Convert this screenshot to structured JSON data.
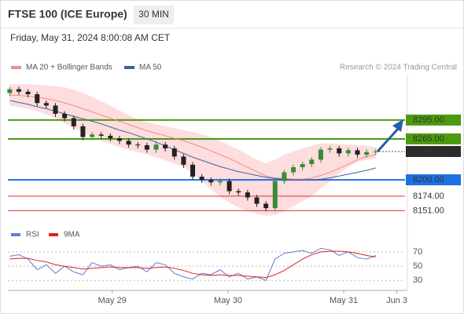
{
  "header": {
    "title": "FTSE 100 (ICE Europe)",
    "interval": "30 MIN",
    "datetime": "Friday, May 31, 2024 8:00:08 AM CET",
    "credit": "Research © 2024 Trading Central"
  },
  "chart_data": [
    {
      "type": "candlestick",
      "x": [
        0,
        1,
        2,
        3,
        4,
        5,
        6,
        7,
        8,
        9,
        10,
        11,
        12,
        13,
        14,
        15,
        16,
        17,
        18,
        19,
        20,
        21,
        22,
        23,
        24,
        25,
        26,
        27,
        28,
        29,
        30,
        31,
        32,
        33,
        34,
        35,
        36,
        37,
        38,
        39,
        40
      ],
      "open": [
        8338,
        8344,
        8340,
        8336,
        8322,
        8318,
        8305,
        8298,
        8285,
        8268,
        8272,
        8270,
        8266,
        8262,
        8256,
        8255,
        8248,
        8256,
        8250,
        8237,
        8224,
        8205,
        8200,
        8196,
        8198,
        8182,
        8180,
        8172,
        8162,
        8155,
        8198,
        8212,
        8220,
        8225,
        8232,
        8248,
        8250,
        8242,
        8247,
        8240,
        8244
      ],
      "high": [
        8348,
        8348,
        8344,
        8340,
        8326,
        8322,
        8309,
        8302,
        8289,
        8276,
        8276,
        8274,
        8270,
        8266,
        8260,
        8259,
        8260,
        8260,
        8254,
        8241,
        8228,
        8209,
        8204,
        8202,
        8202,
        8186,
        8184,
        8176,
        8166,
        8202,
        8216,
        8224,
        8229,
        8236,
        8252,
        8254,
        8254,
        8251,
        8251,
        8248,
        8249
      ],
      "low": [
        8333,
        8335,
        8331,
        8317,
        8313,
        8300,
        8293,
        8280,
        8263,
        8263,
        8265,
        8261,
        8257,
        8251,
        8250,
        8243,
        8243,
        8245,
        8232,
        8219,
        8200,
        8195,
        8191,
        8191,
        8177,
        8175,
        8167,
        8157,
        8150,
        8150,
        8193,
        8207,
        8215,
        8220,
        8227,
        8243,
        8237,
        8237,
        8235,
        8235,
        8239
      ],
      "close": [
        8344,
        8340,
        8336,
        8322,
        8318,
        8305,
        8298,
        8285,
        8268,
        8272,
        8270,
        8266,
        8262,
        8256,
        8255,
        8248,
        8256,
        8250,
        8237,
        8224,
        8205,
        8200,
        8196,
        8198,
        8182,
        8180,
        8172,
        8162,
        8155,
        8198,
        8212,
        8220,
        8225,
        8232,
        8248,
        8250,
        8242,
        8247,
        8240,
        8244,
        8245
      ],
      "up_color": "#3a8a3a",
      "down_color": "#222222",
      "series": [
        {
          "name": "MA 20 + Bollinger Bands",
          "color": "#f28b8b",
          "band_color": "#fcd4d4",
          "values": [
            8335,
            8334,
            8333,
            8331,
            8329,
            8326,
            8322,
            8318,
            8313,
            8308,
            8303,
            8298,
            8293,
            8288,
            8283,
            8278,
            8274,
            8270,
            8266,
            8262,
            8257,
            8252,
            8246,
            8240,
            8234,
            8227,
            8220,
            8213,
            8206,
            8203,
            8202,
            8201,
            8201,
            8203,
            8207,
            8212,
            8218,
            8225,
            8232,
            8237,
            8240
          ],
          "upper": [
            8352,
            8352,
            8352,
            8351,
            8350,
            8349,
            8347,
            8343,
            8338,
            8332,
            8325,
            8318,
            8310,
            8303,
            8296,
            8292,
            8288,
            8285,
            8282,
            8279,
            8276,
            8272,
            8268,
            8262,
            8255,
            8248,
            8240,
            8232,
            8226,
            8232,
            8240,
            8245,
            8250,
            8254,
            8258,
            8258,
            8257,
            8256,
            8255,
            8254,
            8252
          ],
          "lower": [
            8318,
            8316,
            8313,
            8309,
            8304,
            8298,
            8290,
            8283,
            8275,
            8268,
            8262,
            8257,
            8252,
            8248,
            8244,
            8240,
            8236,
            8231,
            8226,
            8220,
            8210,
            8198,
            8185,
            8173,
            8164,
            8156,
            8150,
            8146,
            8143,
            8144,
            8150,
            8158,
            8166,
            8174,
            8186,
            8198,
            8210,
            8220,
            8228,
            8232,
            8234
          ]
        },
        {
          "name": "MA 50",
          "color": "#3d5f9e",
          "values": [
            8326,
            8323,
            8320,
            8316,
            8313,
            8309,
            8305,
            8301,
            8297,
            8293,
            8289,
            8284,
            8279,
            8275,
            8270,
            8265,
            8260,
            8254,
            8248,
            8242,
            8236,
            8231,
            8226,
            8221,
            8217,
            8213,
            8210,
            8207,
            8204,
            8202,
            8201,
            8200,
            8200,
            8200,
            8201,
            8203,
            8206,
            8209,
            8212,
            8215,
            8219
          ]
        }
      ],
      "levels": [
        {
          "value": 8295,
          "label": "8295.00",
          "color": "#4c9a10",
          "boxed": true
        },
        {
          "value": 8265,
          "label": "8265.00",
          "color": "#4c9a10",
          "boxed": true
        },
        {
          "value": 8245,
          "label": "8245.00",
          "color": "#2b2b2b",
          "boxed": true,
          "current": true
        },
        {
          "value": 8200,
          "label": "8200.00",
          "color": "#1f6fe5",
          "boxed": true
        },
        {
          "value": 8174,
          "label": "8174.00",
          "color": "#d9342b",
          "boxed": false
        },
        {
          "value": 8151,
          "label": "8151.00",
          "color": "#d9342b",
          "boxed": false
        }
      ],
      "xlim": [
        -0.2,
        43.2
      ],
      "ylim": [
        8124,
        8361
      ],
      "xticks": [
        {
          "value": 11.2,
          "label": "May 29"
        },
        {
          "value": 23.86,
          "label": "May 30"
        },
        {
          "value": 36.5,
          "label": "May 31"
        },
        {
          "value": 42.3,
          "label": "Jun 3"
        }
      ]
    },
    {
      "type": "line",
      "x": [
        0,
        1,
        2,
        3,
        4,
        5,
        6,
        7,
        8,
        9,
        10,
        11,
        12,
        13,
        14,
        15,
        16,
        17,
        18,
        19,
        20,
        21,
        22,
        23,
        24,
        25,
        26,
        27,
        28,
        29,
        30,
        31,
        32,
        33,
        34,
        35,
        36,
        37,
        38,
        39,
        40
      ],
      "series": [
        {
          "name": "RSI",
          "color": "#5b7fd6",
          "values": [
            64,
            66,
            60,
            45,
            52,
            40,
            50,
            42,
            38,
            55,
            50,
            52,
            45,
            48,
            50,
            42,
            55,
            52,
            40,
            35,
            32,
            40,
            38,
            45,
            35,
            40,
            32,
            35,
            30,
            60,
            68,
            70,
            72,
            68,
            75,
            73,
            65,
            70,
            62,
            60,
            65
          ]
        },
        {
          "name": "9MA",
          "color": "#e02020",
          "values": [
            60,
            61,
            61,
            58,
            56,
            52,
            50,
            48,
            46,
            47,
            48,
            49,
            48,
            48,
            48,
            47,
            48,
            49,
            47,
            44,
            40,
            38,
            37,
            38,
            37,
            37,
            36,
            35,
            34,
            38,
            44,
            52,
            60,
            66,
            70,
            71,
            71,
            70,
            68,
            65,
            63
          ]
        }
      ],
      "xlim": [
        -0.2,
        43.2
      ],
      "ylim": [
        16,
        82
      ],
      "yticks": [
        70,
        50,
        30
      ]
    }
  ]
}
